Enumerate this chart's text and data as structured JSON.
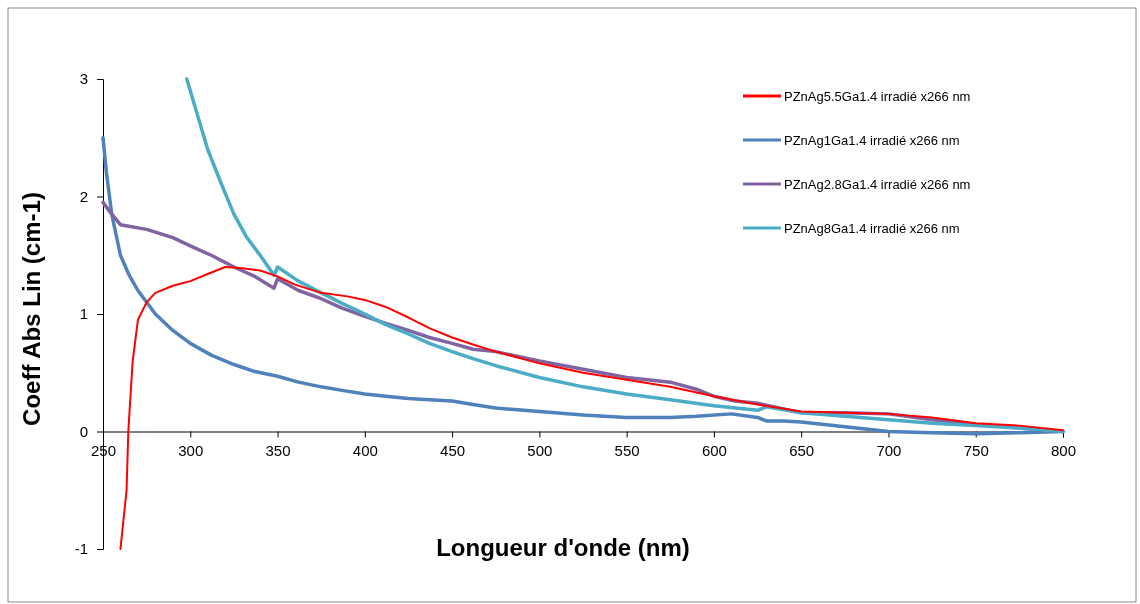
{
  "chart_data": {
    "type": "line",
    "xlabel": "Longueur d'onde (nm)",
    "ylabel": "Coeff Abs Lin (cm-1)",
    "xlim": [
      250,
      800
    ],
    "xticks": [
      250,
      300,
      350,
      400,
      450,
      500,
      550,
      600,
      650,
      700,
      750,
      800
    ],
    "ylim": [
      -1,
      3
    ],
    "yticks": [
      -1,
      0,
      1,
      2,
      3
    ],
    "grid": false,
    "legend": "top right",
    "marker": "none",
    "line_style": "solid",
    "series": [
      {
        "name": "PZnAg5.5Ga1.4 irradié x266 nm",
        "color": "#ff0000",
        "x": [
          260,
          263.5,
          264.5,
          267,
          270,
          275,
          280,
          290,
          300,
          310,
          320,
          330,
          340,
          350,
          360,
          375,
          390,
          400,
          412,
          425,
          437,
          450,
          462,
          475,
          500,
          525,
          550,
          575,
          600,
          625,
          650,
          675,
          700,
          725,
          750,
          775,
          800
        ],
        "values": [
          -1,
          -0.5,
          0,
          0.6,
          0.95,
          1.1,
          1.18,
          1.24,
          1.28,
          1.34,
          1.4,
          1.39,
          1.37,
          1.32,
          1.25,
          1.18,
          1.15,
          1.12,
          1.06,
          0.97,
          0.88,
          0.8,
          0.74,
          0.68,
          0.58,
          0.5,
          0.44,
          0.38,
          0.3,
          0.23,
          0.17,
          0.16,
          0.15,
          0.12,
          0.07,
          0.05,
          0.01
        ]
      },
      {
        "name": "PZnAg1Ga1.4 irradié x266 nm",
        "color": "#4f81bd",
        "x": [
          250,
          252,
          255,
          260,
          265,
          270,
          280,
          290,
          300,
          312,
          325,
          337,
          350,
          362,
          375,
          387,
          400,
          412,
          425,
          437,
          450,
          462,
          475,
          500,
          525,
          550,
          575,
          590,
          610,
          625,
          630,
          640,
          650,
          675,
          700,
          725,
          750,
          775,
          800
        ],
        "values": [
          2.5,
          2.2,
          1.85,
          1.5,
          1.33,
          1.2,
          1.0,
          0.86,
          0.75,
          0.65,
          0.57,
          0.51,
          0.47,
          0.42,
          0.38,
          0.35,
          0.32,
          0.3,
          0.28,
          0.27,
          0.26,
          0.23,
          0.2,
          0.17,
          0.14,
          0.12,
          0.12,
          0.13,
          0.15,
          0.12,
          0.09,
          0.09,
          0.08,
          0.04,
          0.0,
          -0.01,
          -0.02,
          -0.01,
          0.0
        ]
      },
      {
        "name": "PZnAg2.8Ga1.4 irradié x266 nm",
        "color": "#8064a2",
        "x": [
          250,
          255,
          260,
          275,
          290,
          300,
          312,
          325,
          337,
          348,
          350,
          362,
          375,
          387,
          400,
          412,
          425,
          437,
          450,
          462,
          475,
          500,
          525,
          550,
          575,
          590,
          600,
          612,
          625,
          650,
          675,
          700,
          725,
          750,
          775,
          800
        ],
        "values": [
          1.95,
          1.85,
          1.76,
          1.72,
          1.65,
          1.58,
          1.5,
          1.4,
          1.32,
          1.22,
          1.3,
          1.2,
          1.13,
          1.05,
          0.98,
          0.92,
          0.86,
          0.8,
          0.75,
          0.7,
          0.68,
          0.6,
          0.53,
          0.46,
          0.42,
          0.36,
          0.3,
          0.26,
          0.24,
          0.16,
          0.16,
          0.15,
          0.1,
          0.06,
          0.03,
          0.0
        ]
      },
      {
        "name": "PZnAg8Ga1.4 irradié x266 nm",
        "color": "#4bacc6",
        "x": [
          298,
          305,
          310,
          318,
          325,
          332,
          340,
          348,
          350,
          362,
          375,
          387,
          400,
          412,
          425,
          437,
          450,
          462,
          475,
          500,
          525,
          550,
          575,
          600,
          625,
          630,
          650,
          675,
          700,
          725,
          750,
          775,
          800
        ],
        "values": [
          3.0,
          2.65,
          2.4,
          2.1,
          1.85,
          1.66,
          1.5,
          1.33,
          1.4,
          1.28,
          1.18,
          1.09,
          1.0,
          0.91,
          0.83,
          0.75,
          0.68,
          0.62,
          0.56,
          0.46,
          0.38,
          0.32,
          0.27,
          0.22,
          0.18,
          0.21,
          0.16,
          0.13,
          0.1,
          0.07,
          0.05,
          0.03,
          0.0
        ]
      }
    ]
  }
}
